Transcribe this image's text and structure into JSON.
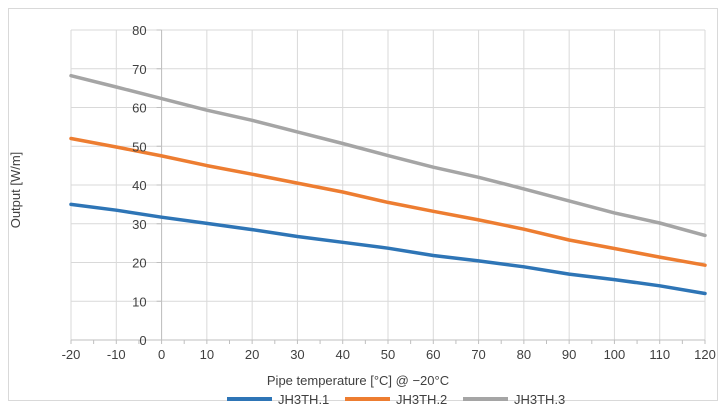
{
  "chart_data": {
    "type": "line",
    "title": "",
    "xlabel": "Pipe temperature [°C] @ −20°C",
    "ylabel": "Output [W/m]",
    "xlim": [
      -20,
      120
    ],
    "ylim": [
      0,
      80
    ],
    "xticks": [
      -20,
      -10,
      0,
      10,
      20,
      30,
      40,
      50,
      60,
      70,
      80,
      90,
      100,
      110,
      120
    ],
    "yticks": [
      0,
      10,
      20,
      30,
      40,
      50,
      60,
      70,
      80
    ],
    "grid": true,
    "legend_position": "bottom",
    "x": [
      -20,
      -10,
      0,
      10,
      20,
      30,
      40,
      50,
      60,
      70,
      80,
      90,
      100,
      110,
      120
    ],
    "series": [
      {
        "name": "JH3TH.1",
        "color": "#2e75b6",
        "values": [
          35,
          33.5,
          31.7,
          30.1,
          28.5,
          26.7,
          25.2,
          23.7,
          21.8,
          20.4,
          18.9,
          17.0,
          15.6,
          14.0,
          12.0
        ]
      },
      {
        "name": "JH3TH.2",
        "color": "#ed7d31",
        "values": [
          52,
          49.8,
          47.5,
          45.0,
          42.8,
          40.5,
          38.2,
          35.5,
          33.2,
          31.0,
          28.6,
          25.8,
          23.6,
          21.4,
          19.3
        ]
      },
      {
        "name": "JH3TH.3",
        "color": "#a5a5a5",
        "values": [
          68.2,
          65.3,
          62.3,
          59.3,
          56.7,
          53.7,
          50.7,
          47.6,
          44.6,
          42.0,
          39.0,
          35.9,
          32.8,
          30.2,
          27.0
        ]
      }
    ]
  }
}
